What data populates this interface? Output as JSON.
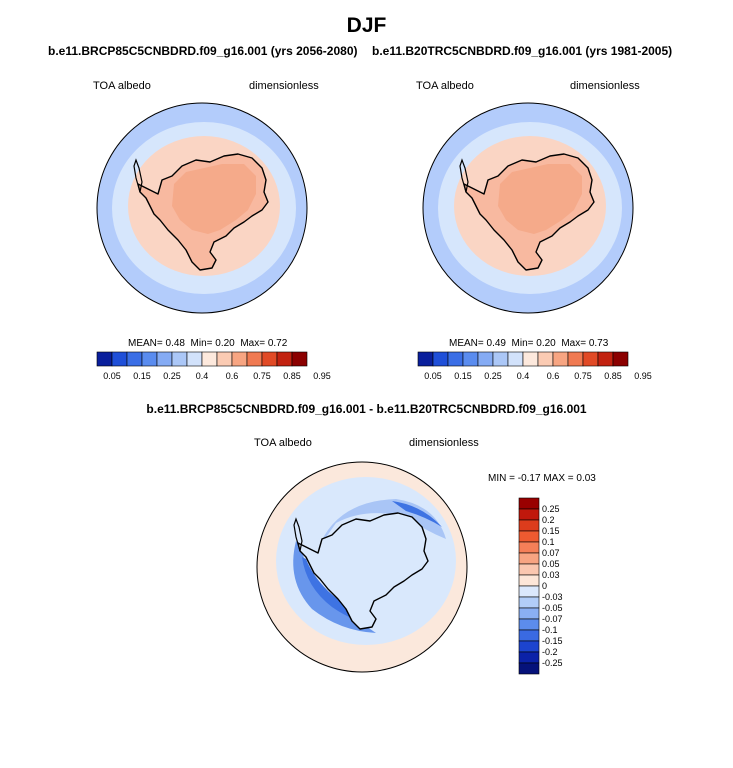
{
  "page": {
    "title": "DJF"
  },
  "colors": {
    "ocean_far": "#b3ccfb",
    "ocean_near": "#d6e6fc",
    "land": "#f8b9a0",
    "land_high": "#f5aa8a",
    "land_edge": "#fad5c4",
    "diff_pos": "#fbe8dc",
    "diff_zero": "#d9e8fc",
    "diff_neg1": "#a9c5f6",
    "diff_neg2": "#6896ec",
    "diff_neg3": "#3e73e3"
  },
  "chart_data": [
    {
      "type": "heatmap",
      "map": "south-polar-stereographic",
      "title": "b.e11.BRCP85C5CNBDRD.f09_g16.001 (yrs 2056-2080)",
      "variable": "TOA albedo",
      "units": "dimensionless",
      "stats": {
        "mean_label": "MEAN=",
        "mean": "0.48",
        "min_label": "Min=",
        "min": "0.20",
        "max_label": "Max=",
        "max": "0.72"
      },
      "colorbar": {
        "labels": [
          "0.05",
          "0.15",
          "0.25",
          "0.4",
          "0.6",
          "0.75",
          "0.85",
          "0.95"
        ],
        "colors": [
          "#0a1f9c",
          "#1f4fd8",
          "#3a6ee6",
          "#5a8cef",
          "#85abf4",
          "#abc7f7",
          "#d2e2fb",
          "#fde9dd",
          "#fbcbb3",
          "#f7a582",
          "#f07a52",
          "#e14a26",
          "#c22210",
          "#8b0000"
        ]
      }
    },
    {
      "type": "heatmap",
      "map": "south-polar-stereographic",
      "title": "b.e11.B20TRC5CNBDRD.f09_g16.001 (yrs 1981-2005)",
      "variable": "TOA albedo",
      "units": "dimensionless",
      "stats": {
        "mean_label": "MEAN=",
        "mean": "0.49",
        "min_label": "Min=",
        "min": "0.20",
        "max_label": "Max=",
        "max": "0.73"
      },
      "colorbar": {
        "labels": [
          "0.05",
          "0.15",
          "0.25",
          "0.4",
          "0.6",
          "0.75",
          "0.85",
          "0.95"
        ],
        "colors": [
          "#0a1f9c",
          "#1f4fd8",
          "#3a6ee6",
          "#5a8cef",
          "#85abf4",
          "#abc7f7",
          "#d2e2fb",
          "#fde9dd",
          "#fbcbb3",
          "#f7a582",
          "#f07a52",
          "#e14a26",
          "#c22210",
          "#8b0000"
        ]
      }
    },
    {
      "type": "heatmap",
      "map": "south-polar-stereographic",
      "title": "b.e11.BRCP85C5CNBDRD.f09_g16.001 - b.e11.B20TRC5CNBDRD.f09_g16.001",
      "variable": "TOA albedo",
      "units": "dimensionless",
      "stats": {
        "min_label": "MIN =",
        "min": "-0.17",
        "max_label": "MAX =",
        "max": "0.03"
      },
      "colorbar": {
        "orientation": "vertical",
        "labels": [
          "0.25",
          "0.2",
          "0.15",
          "0.1",
          "0.07",
          "0.05",
          "0.03",
          "0",
          "-0.03",
          "-0.05",
          "-0.07",
          "-0.1",
          "-0.15",
          "-0.2",
          "-0.25"
        ],
        "colors": [
          "#990000",
          "#c0180c",
          "#dc3c1c",
          "#ee5a30",
          "#f57f58",
          "#f8a482",
          "#fbc7b0",
          "#fde6d8",
          "#dbe8fc",
          "#b2cdf8",
          "#8aaff3",
          "#5c8cec",
          "#3a6ae2",
          "#1c44cf",
          "#0b22a8",
          "#05127a"
        ]
      }
    }
  ]
}
